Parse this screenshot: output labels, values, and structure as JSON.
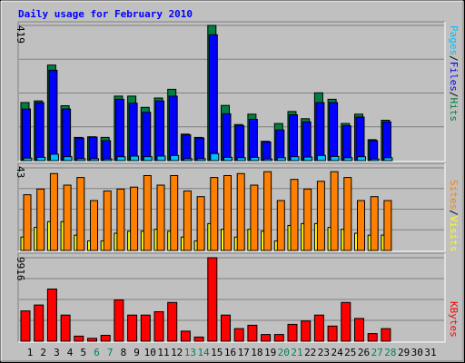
{
  "chart_data": {
    "type": "bar",
    "title": "Daily usage for February 2010",
    "days": [
      "1",
      "2",
      "3",
      "4",
      "5",
      "6",
      "7",
      "8",
      "9",
      "10",
      "11",
      "12",
      "13",
      "14",
      "15",
      "16",
      "17",
      "18",
      "19",
      "20",
      "21",
      "22",
      "23",
      "24",
      "25",
      "26",
      "27",
      "28",
      "29",
      "30",
      "31"
    ],
    "weekend_days": [
      "6",
      "7",
      "13",
      "14",
      "20",
      "21",
      "27",
      "28"
    ],
    "panels": [
      {
        "id": "top",
        "max_label": "419",
        "ylim": [
          0,
          419
        ],
        "series": [
          {
            "name": "Hits",
            "color": "#008040",
            "values": [
              180,
              185,
              296,
              170,
              72,
              74,
              72,
              200,
              200,
              165,
              194,
              221,
              82,
              72,
              419,
              171,
              112,
              144,
              60,
              115,
              152,
              130,
              210,
              190,
              115,
              144,
              65,
              125,
              0,
              0,
              0
            ]
          },
          {
            "name": "Files",
            "color": "#0000ff",
            "values": [
              160,
              180,
              280,
              160,
              70,
              73,
              62,
              190,
              178,
              150,
              185,
              200,
              80,
              70,
              390,
              145,
              108,
              128,
              58,
              95,
              142,
              120,
              180,
              180,
              108,
              135,
              62,
              120,
              0,
              0,
              0
            ]
          },
          {
            "name": "Pages",
            "color": "#00c0ff",
            "values": [
              8,
              10,
              20,
              12,
              6,
              6,
              5,
              12,
              14,
              12,
              14,
              16,
              6,
              6,
              22,
              10,
              9,
              10,
              5,
              9,
              12,
              11,
              16,
              13,
              9,
              12,
              5,
              9,
              0,
              0,
              0
            ]
          }
        ]
      },
      {
        "id": "mid",
        "max_label": "43",
        "ylim": [
          0,
          43
        ],
        "series": [
          {
            "name": "Visits",
            "color": "#ffff00",
            "values": [
              7,
              12,
              15,
              15,
              8,
              5,
              5,
              9,
              10,
              10,
              11,
              10,
              7,
              5,
              14,
              11,
              7,
              11,
              10,
              5,
              13,
              14,
              14,
              12,
              11,
              9,
              8,
              8,
              0,
              0,
              0
            ]
          },
          {
            "name": "Sites",
            "color": "#ff8000",
            "values": [
              29,
              32,
              40,
              34,
              38,
              26,
              31,
              32,
              33,
              39,
              34,
              39,
              31,
              28,
              38,
              39,
              40,
              34,
              41,
              26,
              37,
              32,
              36,
              41,
              38,
              26,
              28,
              26,
              0,
              0,
              0
            ]
          }
        ]
      },
      {
        "id": "bottom",
        "max_label": "9916",
        "ylim": [
          0,
          9916
        ],
        "series": [
          {
            "name": "KBytes",
            "color": "#ff0000",
            "values": [
              3600,
              4300,
              6200,
              3100,
              600,
              350,
              700,
              4900,
              3100,
              3100,
              3500,
              4600,
              1200,
              500,
              9916,
              3100,
              1500,
              1900,
              800,
              800,
              2000,
              2400,
              3100,
              1800,
              4600,
              2700,
              900,
              1500,
              0,
              0,
              0
            ]
          }
        ]
      }
    ],
    "legend_top": [
      {
        "text": "Pages",
        "color": "#00c0ff"
      },
      {
        "text": "/",
        "color": "#000000"
      },
      {
        "text": "Files",
        "color": "#0000ff"
      },
      {
        "text": "/",
        "color": "#000000"
      },
      {
        "text": "Hits",
        "color": "#008040"
      }
    ],
    "legend_mid": [
      {
        "text": "Sites",
        "color": "#ff8000"
      },
      {
        "text": "/",
        "color": "#000000"
      },
      {
        "text": "Visits",
        "color": "#ffff00"
      }
    ],
    "legend_bottom": [
      {
        "text": "KBytes",
        "color": "#ff0000"
      }
    ],
    "colors": {
      "background": "#c0c0c0",
      "title": "#0000ff",
      "weekday_label": "#000000",
      "weekend_label": "#00805c",
      "grid": "#808080"
    }
  }
}
